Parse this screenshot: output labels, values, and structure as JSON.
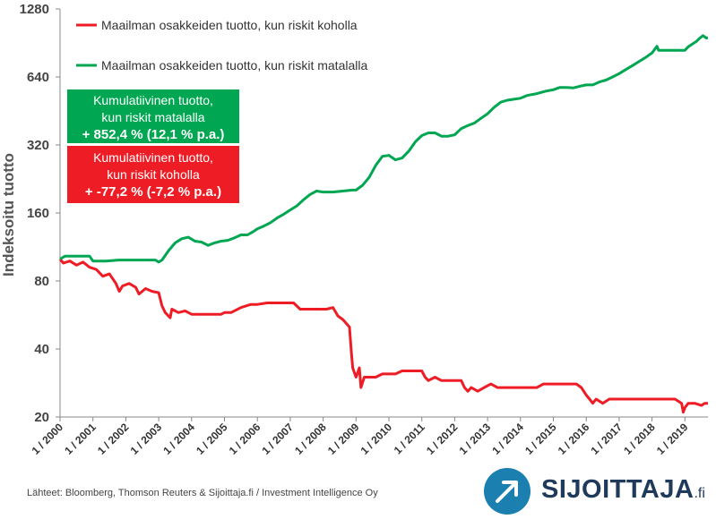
{
  "chart_data": {
    "type": "line",
    "ylabel": "Indeksoitu tuotto",
    "yscale": "log2",
    "ylim": [
      20,
      1280
    ],
    "yticks": [
      "20",
      "40",
      "80",
      "160",
      "320",
      "640",
      "1280"
    ],
    "xlim": [
      2000.0,
      2019.7
    ],
    "xticks": [
      "1 / 2000",
      "1 / 2001",
      "1 / 2002",
      "1 / 2003",
      "1 / 2004",
      "1 / 2005",
      "1 / 2006",
      "1 / 2007",
      "1 / 2008",
      "1 / 2009",
      "1 / 2010",
      "1 / 2011",
      "1 / 2012",
      "1 / 2013",
      "1 / 2014",
      "1 / 2015",
      "1 / 2016",
      "1 / 2017",
      "1 / 2018",
      "1 / 2019"
    ],
    "series": [
      {
        "name": "Maailman osakkeiden tuotto, kun riskit koholla",
        "color": "#ee1c25",
        "points": [
          [
            2000.0,
            100
          ],
          [
            2000.1,
            96
          ],
          [
            2000.3,
            98
          ],
          [
            2000.5,
            94
          ],
          [
            2000.7,
            97
          ],
          [
            2000.9,
            92
          ],
          [
            2001.1,
            90
          ],
          [
            2001.3,
            84
          ],
          [
            2001.5,
            86
          ],
          [
            2001.7,
            78
          ],
          [
            2001.8,
            72
          ],
          [
            2001.9,
            76
          ],
          [
            2002.1,
            78
          ],
          [
            2002.3,
            75
          ],
          [
            2002.4,
            70
          ],
          [
            2002.6,
            74
          ],
          [
            2002.8,
            72
          ],
          [
            2003.0,
            71
          ],
          [
            2003.1,
            62
          ],
          [
            2003.2,
            58
          ],
          [
            2003.35,
            55
          ],
          [
            2003.4,
            60
          ],
          [
            2003.6,
            58
          ],
          [
            2003.8,
            59
          ],
          [
            2004.0,
            57
          ],
          [
            2004.5,
            57
          ],
          [
            2004.9,
            57
          ],
          [
            2005.0,
            58
          ],
          [
            2005.2,
            58
          ],
          [
            2005.3,
            59
          ],
          [
            2005.5,
            61
          ],
          [
            2005.8,
            63
          ],
          [
            2006.0,
            63
          ],
          [
            2006.3,
            64
          ],
          [
            2006.6,
            64
          ],
          [
            2006.9,
            64
          ],
          [
            2007.1,
            64
          ],
          [
            2007.3,
            60
          ],
          [
            2007.6,
            60
          ],
          [
            2007.9,
            60
          ],
          [
            2008.1,
            60
          ],
          [
            2008.3,
            61
          ],
          [
            2008.45,
            56
          ],
          [
            2008.6,
            54
          ],
          [
            2008.8,
            50
          ],
          [
            2008.85,
            40
          ],
          [
            2008.9,
            33
          ],
          [
            2009.0,
            30
          ],
          [
            2009.1,
            33
          ],
          [
            2009.15,
            27
          ],
          [
            2009.25,
            30
          ],
          [
            2009.4,
            30
          ],
          [
            2009.6,
            30
          ],
          [
            2009.8,
            31
          ],
          [
            2010.0,
            31
          ],
          [
            2010.2,
            31
          ],
          [
            2010.4,
            32
          ],
          [
            2010.6,
            32
          ],
          [
            2010.8,
            32
          ],
          [
            2011.0,
            32
          ],
          [
            2011.1,
            30
          ],
          [
            2011.2,
            29
          ],
          [
            2011.4,
            30
          ],
          [
            2011.6,
            29
          ],
          [
            2011.8,
            29
          ],
          [
            2012.0,
            29
          ],
          [
            2012.2,
            29
          ],
          [
            2012.3,
            27
          ],
          [
            2012.4,
            26
          ],
          [
            2012.5,
            27
          ],
          [
            2012.7,
            26
          ],
          [
            2012.9,
            27
          ],
          [
            2013.1,
            28
          ],
          [
            2013.3,
            27
          ],
          [
            2013.6,
            27
          ],
          [
            2013.9,
            27
          ],
          [
            2014.2,
            27
          ],
          [
            2014.5,
            27
          ],
          [
            2014.7,
            28
          ],
          [
            2014.9,
            28
          ],
          [
            2015.2,
            28
          ],
          [
            2015.5,
            28
          ],
          [
            2015.7,
            28
          ],
          [
            2015.85,
            27
          ],
          [
            2016.0,
            25
          ],
          [
            2016.1,
            24
          ],
          [
            2016.2,
            23
          ],
          [
            2016.3,
            24
          ],
          [
            2016.5,
            23
          ],
          [
            2016.7,
            24
          ],
          [
            2016.9,
            24
          ],
          [
            2017.1,
            24
          ],
          [
            2017.4,
            24
          ],
          [
            2017.7,
            24
          ],
          [
            2017.95,
            24
          ],
          [
            2018.1,
            24
          ],
          [
            2018.3,
            24
          ],
          [
            2018.5,
            24
          ],
          [
            2018.7,
            24
          ],
          [
            2018.9,
            23
          ],
          [
            2018.95,
            21
          ],
          [
            2019.0,
            22
          ],
          [
            2019.1,
            23
          ],
          [
            2019.3,
            23
          ],
          [
            2019.5,
            22.5
          ],
          [
            2019.6,
            23
          ],
          [
            2019.7,
            23
          ]
        ]
      },
      {
        "name": "Maailman osakkeiden tuotto, kun riskit matalalla",
        "color": "#00a651",
        "points": [
          [
            2000.0,
            100
          ],
          [
            2000.15,
            103
          ],
          [
            2000.5,
            103
          ],
          [
            2000.9,
            103
          ],
          [
            2001.0,
            98
          ],
          [
            2001.4,
            98
          ],
          [
            2001.8,
            99
          ],
          [
            2002.0,
            99
          ],
          [
            2002.3,
            99
          ],
          [
            2002.6,
            99
          ],
          [
            2002.9,
            99
          ],
          [
            2003.0,
            97
          ],
          [
            2003.1,
            99
          ],
          [
            2003.3,
            109
          ],
          [
            2003.5,
            118
          ],
          [
            2003.7,
            123
          ],
          [
            2003.9,
            125
          ],
          [
            2004.1,
            120
          ],
          [
            2004.3,
            119
          ],
          [
            2004.5,
            115
          ],
          [
            2004.7,
            118
          ],
          [
            2004.9,
            120
          ],
          [
            2005.1,
            121
          ],
          [
            2005.3,
            124
          ],
          [
            2005.5,
            128
          ],
          [
            2005.7,
            128
          ],
          [
            2005.9,
            133
          ],
          [
            2006.0,
            136
          ],
          [
            2006.2,
            140
          ],
          [
            2006.4,
            145
          ],
          [
            2006.6,
            152
          ],
          [
            2006.8,
            158
          ],
          [
            2007.0,
            165
          ],
          [
            2007.2,
            172
          ],
          [
            2007.4,
            183
          ],
          [
            2007.6,
            193
          ],
          [
            2007.8,
            200
          ],
          [
            2008.0,
            198
          ],
          [
            2008.3,
            198
          ],
          [
            2008.6,
            200
          ],
          [
            2008.9,
            202
          ],
          [
            2009.0,
            202
          ],
          [
            2009.2,
            212
          ],
          [
            2009.4,
            230
          ],
          [
            2009.6,
            260
          ],
          [
            2009.8,
            285
          ],
          [
            2010.0,
            288
          ],
          [
            2010.2,
            275
          ],
          [
            2010.4,
            280
          ],
          [
            2010.6,
            300
          ],
          [
            2010.8,
            330
          ],
          [
            2011.0,
            352
          ],
          [
            2011.2,
            362
          ],
          [
            2011.4,
            362
          ],
          [
            2011.6,
            350
          ],
          [
            2011.8,
            350
          ],
          [
            2012.0,
            355
          ],
          [
            2012.2,
            378
          ],
          [
            2012.4,
            390
          ],
          [
            2012.6,
            400
          ],
          [
            2012.8,
            420
          ],
          [
            2013.0,
            440
          ],
          [
            2013.2,
            470
          ],
          [
            2013.4,
            495
          ],
          [
            2013.6,
            505
          ],
          [
            2013.8,
            510
          ],
          [
            2014.0,
            515
          ],
          [
            2014.2,
            530
          ],
          [
            2014.5,
            540
          ],
          [
            2014.8,
            555
          ],
          [
            2015.0,
            562
          ],
          [
            2015.2,
            575
          ],
          [
            2015.4,
            575
          ],
          [
            2015.6,
            572
          ],
          [
            2015.8,
            582
          ],
          [
            2016.0,
            590
          ],
          [
            2016.2,
            590
          ],
          [
            2016.4,
            608
          ],
          [
            2016.6,
            620
          ],
          [
            2016.8,
            640
          ],
          [
            2017.0,
            662
          ],
          [
            2017.2,
            690
          ],
          [
            2017.4,
            718
          ],
          [
            2017.6,
            748
          ],
          [
            2017.8,
            780
          ],
          [
            2018.0,
            818
          ],
          [
            2018.1,
            855
          ],
          [
            2018.15,
            875
          ],
          [
            2018.2,
            840
          ],
          [
            2018.5,
            840
          ],
          [
            2018.8,
            840
          ],
          [
            2019.0,
            840
          ],
          [
            2019.1,
            870
          ],
          [
            2019.25,
            900
          ],
          [
            2019.35,
            920
          ],
          [
            2019.45,
            950
          ],
          [
            2019.55,
            975
          ],
          [
            2019.65,
            952
          ],
          [
            2019.7,
            955
          ]
        ]
      }
    ],
    "annotations": [
      {
        "lines": [
          "Kumulatiivinen tuotto,",
          "kun riskit matalalla",
          "+ 852,4 % (12,1 % p.a.)"
        ],
        "color": "#00a651"
      },
      {
        "lines": [
          "Kumulatiivinen tuotto,",
          "kun riskit koholla",
          "+ -77,2 % (-7,2 % p.a.)"
        ],
        "color": "#ee1c25"
      }
    ],
    "legend": "top-left",
    "grid": false
  },
  "source": "Lähteet: Bloomberg, Thomson Reuters & Sijoittaja.fi / Investment Intelligence Oy",
  "logo": {
    "text": "SIJOITTAJA",
    "suffix": ".fi"
  }
}
